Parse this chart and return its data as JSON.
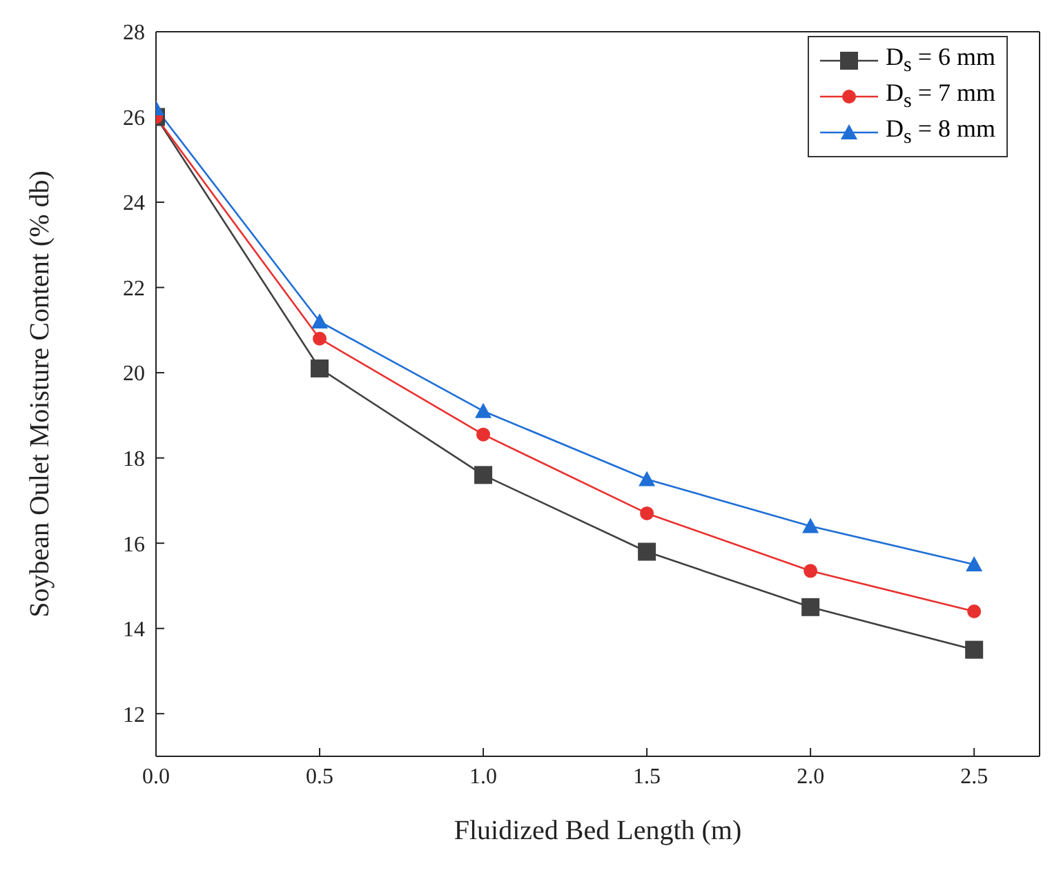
{
  "chart_data": {
    "type": "line",
    "xlabel": "Fluidized Bed Length (m)",
    "ylabel": "Soybean Oulet Moisture Content (% db)",
    "x": [
      0,
      0.5,
      1.0,
      1.5,
      2.0,
      2.5
    ],
    "xlim": [
      0,
      2.7
    ],
    "xticks": [
      {
        "value": 0,
        "label": "0.0"
      },
      {
        "value": 0.5,
        "label": "0.5"
      },
      {
        "value": 1,
        "label": "1.0"
      },
      {
        "value": 1.5,
        "label": "1.5"
      },
      {
        "value": 2,
        "label": "2.0"
      },
      {
        "value": 2.5,
        "label": "2.5"
      }
    ],
    "ylim": [
      11,
      28
    ],
    "yticks": [
      12,
      14,
      16,
      18,
      20,
      22,
      24,
      26,
      28
    ],
    "grid": false,
    "legend": "top right",
    "series": [
      {
        "name": "D$_{s}$ = 6 mm",
        "color": "#404040",
        "marker": "square",
        "values": [
          26.0,
          20.1,
          17.6,
          15.8,
          14.5,
          13.5
        ]
      },
      {
        "name": "D$_{s}$ = 7 mm",
        "color": "#e8312f",
        "marker": "circle",
        "values": [
          26.0,
          20.8,
          18.55,
          16.7,
          15.35,
          14.4
        ]
      },
      {
        "name": "D$_{s}$ = 8 mm",
        "color": "#1f6fd6",
        "marker": "triangle",
        "values": [
          26.2,
          21.2,
          19.1,
          17.5,
          16.4,
          15.5
        ]
      }
    ]
  }
}
